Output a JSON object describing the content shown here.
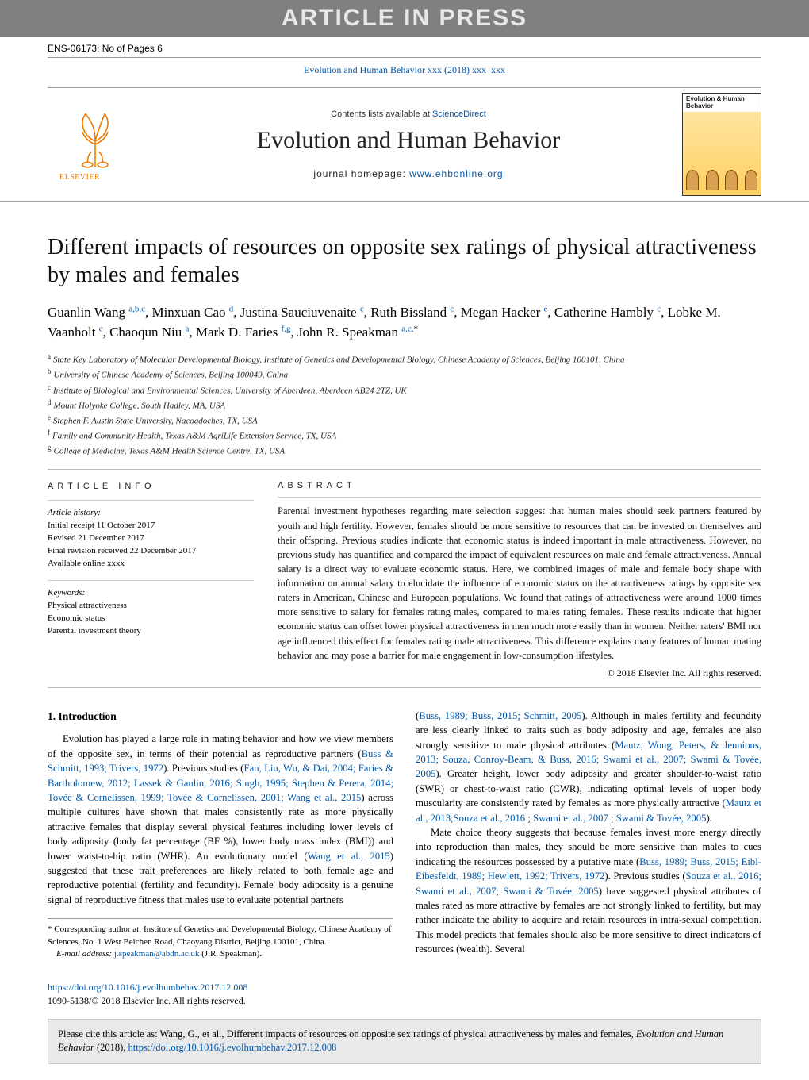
{
  "press_banner": "ARTICLE IN PRESS",
  "docid": "ENS-06173; No of Pages 6",
  "citation_line": "Evolution and Human Behavior xxx (2018) xxx–xxx",
  "masthead": {
    "contents_prefix": "Contents lists available at ",
    "contents_link": "ScienceDirect",
    "journal": "Evolution and Human Behavior",
    "homepage_prefix": "journal homepage: ",
    "homepage_url": "www.ehbonline.org",
    "cover_title": "Evolution & Human Behavior"
  },
  "title": "Different impacts of resources on opposite sex ratings of physical attractiveness by males and females",
  "authors_html": "Guanlin Wang <sup><a>a,b,c</a></sup>, Minxuan Cao <sup><a>d</a></sup>, Justina Sauciuvenaite <sup><a>c</a></sup>, Ruth Bissland <sup><a>c</a></sup>, Megan Hacker <sup><a>e</a></sup>, Catherine Hambly <sup><a>c</a></sup>, Lobke M. Vaanholt <sup><a>c</a></sup>, Chaoqun Niu <sup><a>a</a></sup>, Mark D. Faries <sup><a>f,g</a></sup>, John R. Speakman <sup><a>a,c,</a>*</sup>",
  "affiliations": [
    {
      "k": "a",
      "t": "State Key Laboratory of Molecular Developmental Biology, Institute of Genetics and Developmental Biology, Chinese Academy of Sciences, Beijing 100101, China"
    },
    {
      "k": "b",
      "t": "University of Chinese Academy of Sciences, Beijing 100049, China"
    },
    {
      "k": "c",
      "t": "Institute of Biological and Environmental Sciences, University of Aberdeen, Aberdeen AB24 2TZ, UK"
    },
    {
      "k": "d",
      "t": "Mount Holyoke College, South Hadley, MA, USA"
    },
    {
      "k": "e",
      "t": "Stephen F. Austin State University, Nacogdoches, TX, USA"
    },
    {
      "k": "f",
      "t": "Family and Community Health, Texas A&M AgriLife Extension Service, TX, USA"
    },
    {
      "k": "g",
      "t": "College of Medicine, Texas A&M Health Science Centre, TX, USA"
    }
  ],
  "info": {
    "label_info": "article info",
    "history_head": "Article history:",
    "history": [
      "Initial receipt 11 October 2017",
      "Revised 21 December 2017",
      "Final revision received 22 December 2017",
      "Available online xxxx"
    ],
    "keywords_head": "Keywords:",
    "keywords": [
      "Physical attractiveness",
      "Economic status",
      "Parental investment theory"
    ]
  },
  "abstract": {
    "label": "abstract",
    "text": "Parental investment hypotheses regarding mate selection suggest that human males should seek partners featured by youth and high fertility. However, females should be more sensitive to resources that can be invested on themselves and their offspring. Previous studies indicate that economic status is indeed important in male attractiveness. However, no previous study has quantified and compared the impact of equivalent resources on male and female attractiveness. Annual salary is a direct way to evaluate economic status. Here, we combined images of male and female body shape with information on annual salary to elucidate the influence of economic status on the attractiveness ratings by opposite sex raters in American, Chinese and European populations. We found that ratings of attractiveness were around 1000 times more sensitive to salary for females rating males, compared to males rating females. These results indicate that higher economic status can offset lower physical attractiveness in men much more easily than in women. Neither raters' BMI nor age influenced this effect for females rating male attractiveness. This difference explains many features of human mating behavior and may pose a barrier for male engagement in low-consumption lifestyles.",
    "copyright": "© 2018 Elsevier Inc. All rights reserved."
  },
  "body": {
    "h1": "1. Introduction",
    "p1_a": "Evolution has played a large role in mating behavior and how we view members of the opposite sex, in terms of their potential as reproductive partners (",
    "p1_ref1": "Buss & Schmitt, 1993; Trivers, 1972",
    "p1_b": "). Previous studies (",
    "p1_ref2": "Fan, Liu, Wu, & Dai, 2004; Faries & Bartholomew, 2012; Lassek & Gaulin, 2016; Singh, 1995; Stephen & Perera, 2014; Tovée & Cornelissen, 1999; Tovée & Cornelissen, 2001; Wang et al., 2015",
    "p1_c": ") across multiple cultures have shown that males consistently rate as more physically attractive females that display several physical features including lower levels of body adiposity (body fat percentage (BF %), lower body mass index (BMI)) and lower waist-to-hip ratio (WHR). An evolutionary model (",
    "p1_ref3": "Wang et al., 2015",
    "p1_d": ") suggested that these trait preferences are likely related to both female age and reproductive potential (fertility and fecundity). Female' body adiposity is a genuine signal of reproductive fitness that males use to evaluate potential partners",
    "p2_pre": "(",
    "p2_ref1": "Buss, 1989; Buss, 2015; Schmitt, 2005",
    "p2_a": "). Although in males fertility and fecundity are less clearly linked to traits such as body adiposity and age, females are also strongly sensitive to male physical attributes (",
    "p2_ref2": "Mautz, Wong, Peters, & Jennions, 2013; Souza, Conroy-Beam, & Buss, 2016; Swami et al., 2007; Swami & Tovée, 2005",
    "p2_b": "). Greater height, lower body adiposity and greater shoulder-to-waist ratio (SWR) or chest-to-waist ratio (CWR), indicating optimal levels of upper body muscularity are consistently rated by females as more physically attractive (",
    "p2_ref3": "Mautz et al., 2013;Souza et al., 2016",
    "p2_c": " ; ",
    "p2_ref4": "Swami et al., 2007",
    "p2_d": " ; ",
    "p2_ref5": "Swami & Tovée, 2005",
    "p2_e": ").",
    "p3_a": "Mate choice theory suggests that because females invest more energy directly into reproduction than males, they should be more sensitive than males to cues indicating the resources possessed by a putative mate (",
    "p3_ref1": "Buss, 1989; Buss, 2015; Eibl-Eibesfeldt, 1989; Hewlett, 1992; Trivers, 1972",
    "p3_b": "). Previous studies (",
    "p3_ref2": "Souza et al., 2016; Swami et al., 2007; Swami & Tovée, 2005",
    "p3_c": ") have suggested physical attributes of males rated as more attractive by females are not strongly linked to fertility, but may rather indicate the ability to acquire and retain resources in intra-sexual competition. This model predicts that females should also be more sensitive to direct indicators of resources (wealth). Several"
  },
  "corr": {
    "star": "*",
    "text": " Corresponding author at: Institute of Genetics and Developmental Biology, Chinese Academy of Sciences, No. 1 West Beichen Road, Chaoyang District, Beijing 100101, China.",
    "email_label": "E-mail address: ",
    "email": "j.speakman@abdn.ac.uk",
    "email_tail": " (J.R. Speakman)."
  },
  "doi": {
    "url": "https://doi.org/10.1016/j.evolhumbehav.2017.12.008",
    "issn": "1090-5138/© 2018 Elsevier Inc. All rights reserved."
  },
  "citebox": {
    "pre": "Please cite this article as: Wang, G., et al., Different impacts of resources on opposite sex ratings of physical attractiveness by males and females, ",
    "journal": "Evolution and Human Behavior",
    "year": " (2018), ",
    "url": "https://doi.org/10.1016/j.evolhumbehav.2017.12.008"
  },
  "colors": {
    "link": "#0056a8",
    "banner_bg": "#808080",
    "banner_fg": "#e8e8e8",
    "elsevier": "#ef7c00"
  }
}
